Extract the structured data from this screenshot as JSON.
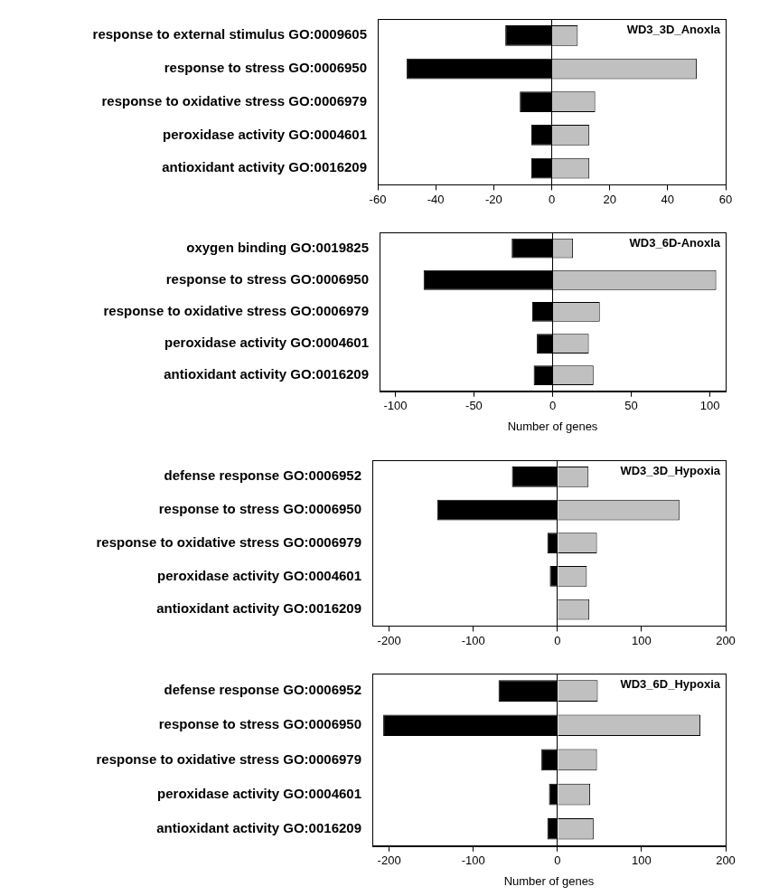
{
  "chart_data": [
    {
      "type": "bar",
      "orientation": "horizontal",
      "stacked": true,
      "grid": false,
      "title": "WD3_3D_Anoxla",
      "categories": [
        "response to external stimulus GO:0009605",
        "response to stress GO:0006950",
        "response to oxidative stress GO:0006979",
        "peroxidase activity GO:0004601",
        "antioxidant activity GO:0016209"
      ],
      "series": [
        {
          "color": "#000000",
          "values": [
            -16,
            -50,
            -11,
            -7,
            -7
          ]
        },
        {
          "color": "#c0c0c0",
          "values": [
            9,
            50,
            15,
            13,
            13
          ]
        }
      ],
      "xlim": [
        -60,
        60
      ],
      "xticks": [
        -60,
        -40,
        -20,
        0,
        20,
        40,
        60
      ]
    },
    {
      "type": "bar",
      "orientation": "horizontal",
      "stacked": true,
      "grid": false,
      "title": "WD3_6D-Anoxla",
      "x_label": "Number of genes",
      "categories": [
        "oxygen binding GO:0019825",
        "response to stress GO:0006950",
        "response to oxidative stress GO:0006979",
        "peroxidase activity GO:0004601",
        "antioxidant activity GO:0016209"
      ],
      "series": [
        {
          "color": "#000000",
          "values": [
            -26,
            -82,
            -13,
            -10,
            -12
          ]
        },
        {
          "color": "#c0c0c0",
          "values": [
            13,
            104,
            30,
            23,
            26
          ]
        }
      ],
      "xlim": [
        -110,
        110
      ],
      "xticks": [
        -100,
        -50,
        0,
        50,
        100
      ]
    },
    {
      "type": "bar",
      "orientation": "horizontal",
      "stacked": true,
      "grid": false,
      "title": "WD3_3D_Hypoxia",
      "categories": [
        "defense response GO:0006952",
        "response to stress GO:0006950",
        "response to oxidative stress GO:0006979",
        "peroxidase activity GO:0004601",
        "antioxidant activity GO:0016209"
      ],
      "series": [
        {
          "color": "#000000",
          "values": [
            -54,
            -143,
            -12,
            -9,
            0
          ]
        },
        {
          "color": "#c0c0c0",
          "values": [
            37,
            145,
            47,
            35,
            38
          ]
        }
      ],
      "xlim": [
        -220,
        200
      ],
      "xticks": [
        -200,
        -100,
        0,
        100,
        200
      ]
    },
    {
      "type": "bar",
      "orientation": "horizontal",
      "stacked": true,
      "grid": false,
      "title": "WD3_6D_Hypoxia",
      "x_label": "Number of genes",
      "categories": [
        "defense response GO:0006952",
        "response to stress GO:0006950",
        "response to oxidative stress GO:0006979",
        "peroxidase activity GO:0004601",
        "antioxidant activity GO:0016209"
      ],
      "series": [
        {
          "color": "#000000",
          "values": [
            -70,
            -207,
            -19,
            -10,
            -12
          ]
        },
        {
          "color": "#c0c0c0",
          "values": [
            48,
            170,
            47,
            39,
            43
          ]
        }
      ],
      "xlim": [
        -220,
        200
      ],
      "xticks": [
        -200,
        -100,
        0,
        100,
        200
      ]
    }
  ]
}
